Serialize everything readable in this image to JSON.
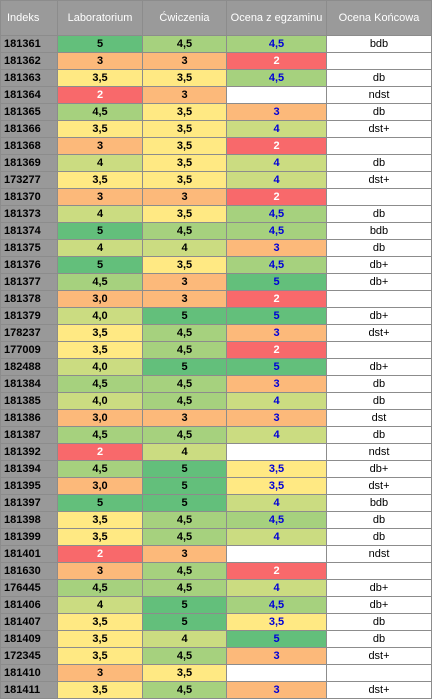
{
  "colors": {
    "5": "#63bf7b",
    "4.5": "#a6d17e",
    "4": "#cbdc81",
    "3.5": "#ffe983",
    "3": "#fcb97a",
    "2": "#f8696b",
    "empty": "#ffffff"
  },
  "headers": {
    "indeks": "Indeks",
    "laboratorium": "Laboratorium",
    "cwiczenia": "Ćwiczenia",
    "egzamin": "Ocena z egzaminu",
    "koncowa": "Ocena Końcowa"
  },
  "rows": [
    {
      "id": "181361",
      "lab": "5",
      "cw": "4,5",
      "ex": "4,5",
      "final": "bdb"
    },
    {
      "id": "181362",
      "lab": "3",
      "cw": "3",
      "ex": "2",
      "final": ""
    },
    {
      "id": "181363",
      "lab": "3,5",
      "cw": "3,5",
      "ex": "4,5",
      "final": "db"
    },
    {
      "id": "181364",
      "lab": "2",
      "cw": "3",
      "ex": "",
      "final": "ndst"
    },
    {
      "id": "181365",
      "lab": "4,5",
      "cw": "3,5",
      "ex": "3",
      "final": "db"
    },
    {
      "id": "181366",
      "lab": "3,5",
      "cw": "3,5",
      "ex": "4",
      "final": "dst+"
    },
    {
      "id": "181368",
      "lab": "3",
      "cw": "3,5",
      "ex": "2",
      "final": ""
    },
    {
      "id": "181369",
      "lab": "4",
      "cw": "3,5",
      "ex": "4",
      "final": "db"
    },
    {
      "id": "173277",
      "lab": "3,5",
      "cw": "3,5",
      "ex": "4",
      "final": "dst+"
    },
    {
      "id": "181370",
      "lab": "3",
      "cw": "3",
      "ex": "2",
      "final": ""
    },
    {
      "id": "181373",
      "lab": "4",
      "cw": "3,5",
      "ex": "4,5",
      "final": "db"
    },
    {
      "id": "181374",
      "lab": "5",
      "cw": "4,5",
      "ex": "4,5",
      "final": "bdb"
    },
    {
      "id": "181375",
      "lab": "4",
      "cw": "4",
      "ex": "3",
      "final": "db"
    },
    {
      "id": "181376",
      "lab": "5",
      "cw": "3,5",
      "ex": "4,5",
      "final": "db+"
    },
    {
      "id": "181377",
      "lab": "4,5",
      "cw": "3",
      "ex": "5",
      "final": "db+"
    },
    {
      "id": "181378",
      "lab": "3,0",
      "cw": "3",
      "ex": "2",
      "final": ""
    },
    {
      "id": "181379",
      "lab": "4,0",
      "cw": "5",
      "ex": "5",
      "final": "db+"
    },
    {
      "id": "178237",
      "lab": "3,5",
      "cw": "4,5",
      "ex": "3",
      "final": "dst+"
    },
    {
      "id": "177009",
      "lab": "3,5",
      "cw": "4,5",
      "ex": "2",
      "final": ""
    },
    {
      "id": "182488",
      "lab": "4,0",
      "cw": "5",
      "ex": "5",
      "final": "db+"
    },
    {
      "id": "181384",
      "lab": "4,5",
      "cw": "4,5",
      "ex": "3",
      "final": "db"
    },
    {
      "id": "181385",
      "lab": "4,0",
      "cw": "4,5",
      "ex": "4",
      "final": "db"
    },
    {
      "id": "181386",
      "lab": "3,0",
      "cw": "3",
      "ex": "3",
      "final": "dst"
    },
    {
      "id": "181387",
      "lab": "4,5",
      "cw": "4,5",
      "ex": "4",
      "final": "db"
    },
    {
      "id": "181392",
      "lab": "2",
      "cw": "4",
      "ex": "",
      "final": "ndst"
    },
    {
      "id": "181394",
      "lab": "4,5",
      "cw": "5",
      "ex": "3,5",
      "final": "db+"
    },
    {
      "id": "181395",
      "lab": "3,0",
      "cw": "5",
      "ex": "3,5",
      "final": "dst+"
    },
    {
      "id": "181397",
      "lab": "5",
      "cw": "5",
      "ex": "4",
      "final": "bdb"
    },
    {
      "id": "181398",
      "lab": "3,5",
      "cw": "4,5",
      "ex": "4,5",
      "final": "db"
    },
    {
      "id": "181399",
      "lab": "3,5",
      "cw": "4,5",
      "ex": "4",
      "final": "db"
    },
    {
      "id": "181401",
      "lab": "2",
      "cw": "3",
      "ex": "",
      "final": "ndst"
    },
    {
      "id": "181630",
      "lab": "3",
      "cw": "4,5",
      "ex": "2",
      "final": ""
    },
    {
      "id": "176445",
      "lab": "4,5",
      "cw": "4,5",
      "ex": "4",
      "final": "db+"
    },
    {
      "id": "181406",
      "lab": "4",
      "cw": "5",
      "ex": "4,5",
      "final": "db+"
    },
    {
      "id": "181407",
      "lab": "3,5",
      "cw": "5",
      "ex": "3,5",
      "final": "db"
    },
    {
      "id": "181409",
      "lab": "3,5",
      "cw": "4",
      "ex": "5",
      "final": "db"
    },
    {
      "id": "172345",
      "lab": "3,5",
      "cw": "4,5",
      "ex": "3",
      "final": "dst+"
    },
    {
      "id": "181410",
      "lab": "3",
      "cw": "3,5",
      "ex": "",
      "final": ""
    },
    {
      "id": "181411",
      "lab": "3,5",
      "cw": "4,5",
      "ex": "3",
      "final": "dst+"
    }
  ]
}
